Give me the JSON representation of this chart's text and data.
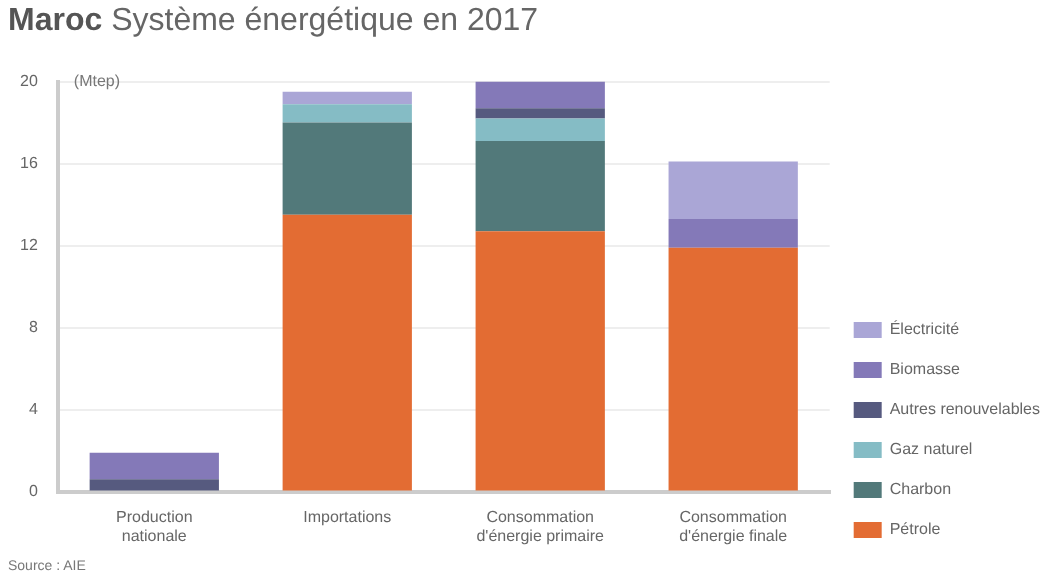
{
  "chart_data": {
    "type": "bar",
    "title": "Maroc Système énergétique en 2017",
    "ylabel": "(Mtep)",
    "annotations": [
      "Source : AIE"
    ],
    "categories": [
      "Production nationale",
      "Importations",
      "Consommation d'énergie primaire",
      "Consommation d'énergie finale"
    ],
    "stacked": true,
    "ylim": [
      0,
      20
    ],
    "yticks": [
      0,
      4,
      8,
      12,
      16,
      20
    ],
    "grid": "y",
    "legend": "right",
    "series": [
      {
        "name": "Pétrole",
        "color": "#e36c33",
        "values": [
          0,
          13.5,
          12.7,
          11.9
        ]
      },
      {
        "name": "Charbon",
        "color": "#52797a",
        "values": [
          0,
          4.5,
          4.4,
          0
        ]
      },
      {
        "name": "Gaz naturel",
        "color": "#85bcc5",
        "values": [
          0,
          0.9,
          1.1,
          0
        ]
      },
      {
        "name": "Autres renouvelables",
        "color": "#565a7f",
        "values": [
          0.6,
          0,
          0.5,
          0
        ]
      },
      {
        "name": "Biomasse",
        "color": "#8479b8",
        "values": [
          1.3,
          0,
          1.3,
          1.4
        ]
      },
      {
        "name": "Électricité",
        "color": "#aaa6d6",
        "values": [
          0,
          0.6,
          0,
          2.8
        ]
      }
    ]
  }
}
